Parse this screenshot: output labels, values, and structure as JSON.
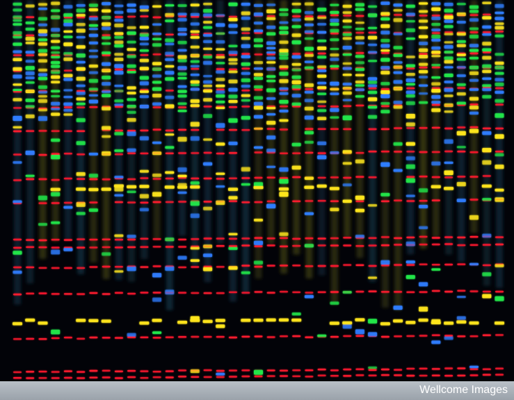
{
  "footer": {
    "credit": "Wellcome Images"
  },
  "gel": {
    "lanes": 39,
    "colors": {
      "background": "#020308",
      "red": "#ff1a2e",
      "green": "#21e84a",
      "blue": "#2f7dff",
      "yellow": "#ffe61c",
      "footer": "#a9b0b7"
    }
  }
}
